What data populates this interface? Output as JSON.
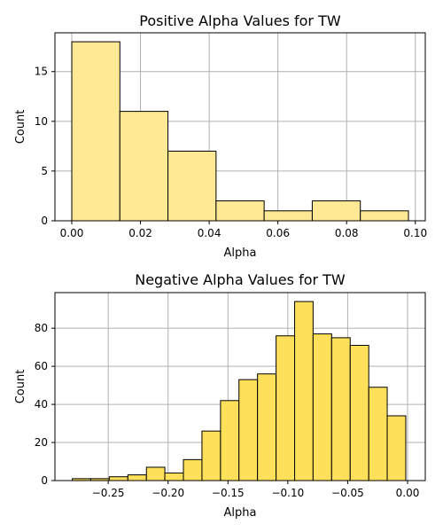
{
  "chart_data": [
    {
      "type": "bar",
      "title": "Positive Alpha Values for TW",
      "xlabel": "Alpha",
      "ylabel": "Count",
      "color": "#ffe995",
      "grid": true,
      "xlim": [
        -0.0049,
        0.1029
      ],
      "ylim": [
        0,
        18.9
      ],
      "xticks": [
        0.0,
        0.02,
        0.04,
        0.06,
        0.08,
        0.1
      ],
      "xtick_labels": [
        "0.00",
        "0.02",
        "0.04",
        "0.06",
        "0.08",
        "0.10"
      ],
      "yticks": [
        0,
        5,
        10,
        15
      ],
      "ytick_labels": [
        "0",
        "5",
        "10",
        "15"
      ],
      "bins": [
        {
          "x0": 0.0,
          "x1": 0.014,
          "count": 18
        },
        {
          "x0": 0.014,
          "x1": 0.028,
          "count": 11
        },
        {
          "x0": 0.028,
          "x1": 0.042,
          "count": 7
        },
        {
          "x0": 0.042,
          "x1": 0.056,
          "count": 2
        },
        {
          "x0": 0.056,
          "x1": 0.07,
          "count": 1
        },
        {
          "x0": 0.07,
          "x1": 0.084,
          "count": 2
        },
        {
          "x0": 0.084,
          "x1": 0.098,
          "count": 1
        }
      ]
    },
    {
      "type": "bar",
      "title": "Negative Alpha Values for TW",
      "xlabel": "Alpha",
      "ylabel": "Count",
      "color": "#ffe05a",
      "grid": true,
      "xlim": [
        -0.2945,
        0.0148
      ],
      "ylim": [
        0,
        98.7
      ],
      "xticks": [
        -0.25,
        -0.2,
        -0.15,
        -0.1,
        -0.05,
        0.0
      ],
      "xtick_labels": [
        "−0.25",
        "−0.20",
        "−0.15",
        "−0.10",
        "−0.05",
        "0.00"
      ],
      "yticks": [
        0,
        20,
        40,
        60,
        80
      ],
      "ytick_labels": [
        "0",
        "20",
        "40",
        "60",
        "80"
      ],
      "bins": [
        {
          "x0": -0.28,
          "x1": -0.2646,
          "count": 1
        },
        {
          "x0": -0.2646,
          "x1": -0.2491,
          "count": 1
        },
        {
          "x0": -0.2491,
          "x1": -0.2336,
          "count": 2
        },
        {
          "x0": -0.2336,
          "x1": -0.2181,
          "count": 3
        },
        {
          "x0": -0.2181,
          "x1": -0.2027,
          "count": 7
        },
        {
          "x0": -0.2027,
          "x1": -0.1872,
          "count": 4
        },
        {
          "x0": -0.1872,
          "x1": -0.1717,
          "count": 11
        },
        {
          "x0": -0.1717,
          "x1": -0.1562,
          "count": 26
        },
        {
          "x0": -0.1562,
          "x1": -0.1408,
          "count": 42
        },
        {
          "x0": -0.1408,
          "x1": -0.1253,
          "count": 53
        },
        {
          "x0": -0.1253,
          "x1": -0.1098,
          "count": 56
        },
        {
          "x0": -0.1098,
          "x1": -0.0943,
          "count": 76
        },
        {
          "x0": -0.0943,
          "x1": -0.0789,
          "count": 94
        },
        {
          "x0": -0.0789,
          "x1": -0.0634,
          "count": 77
        },
        {
          "x0": -0.0634,
          "x1": -0.0479,
          "count": 75
        },
        {
          "x0": -0.0479,
          "x1": -0.0324,
          "count": 71
        },
        {
          "x0": -0.0324,
          "x1": -0.017,
          "count": 49
        },
        {
          "x0": -0.017,
          "x1": -0.0015,
          "count": 34
        },
        {
          "x0": -0.0015,
          "x1": 0.0,
          "count": 0
        }
      ]
    }
  ]
}
